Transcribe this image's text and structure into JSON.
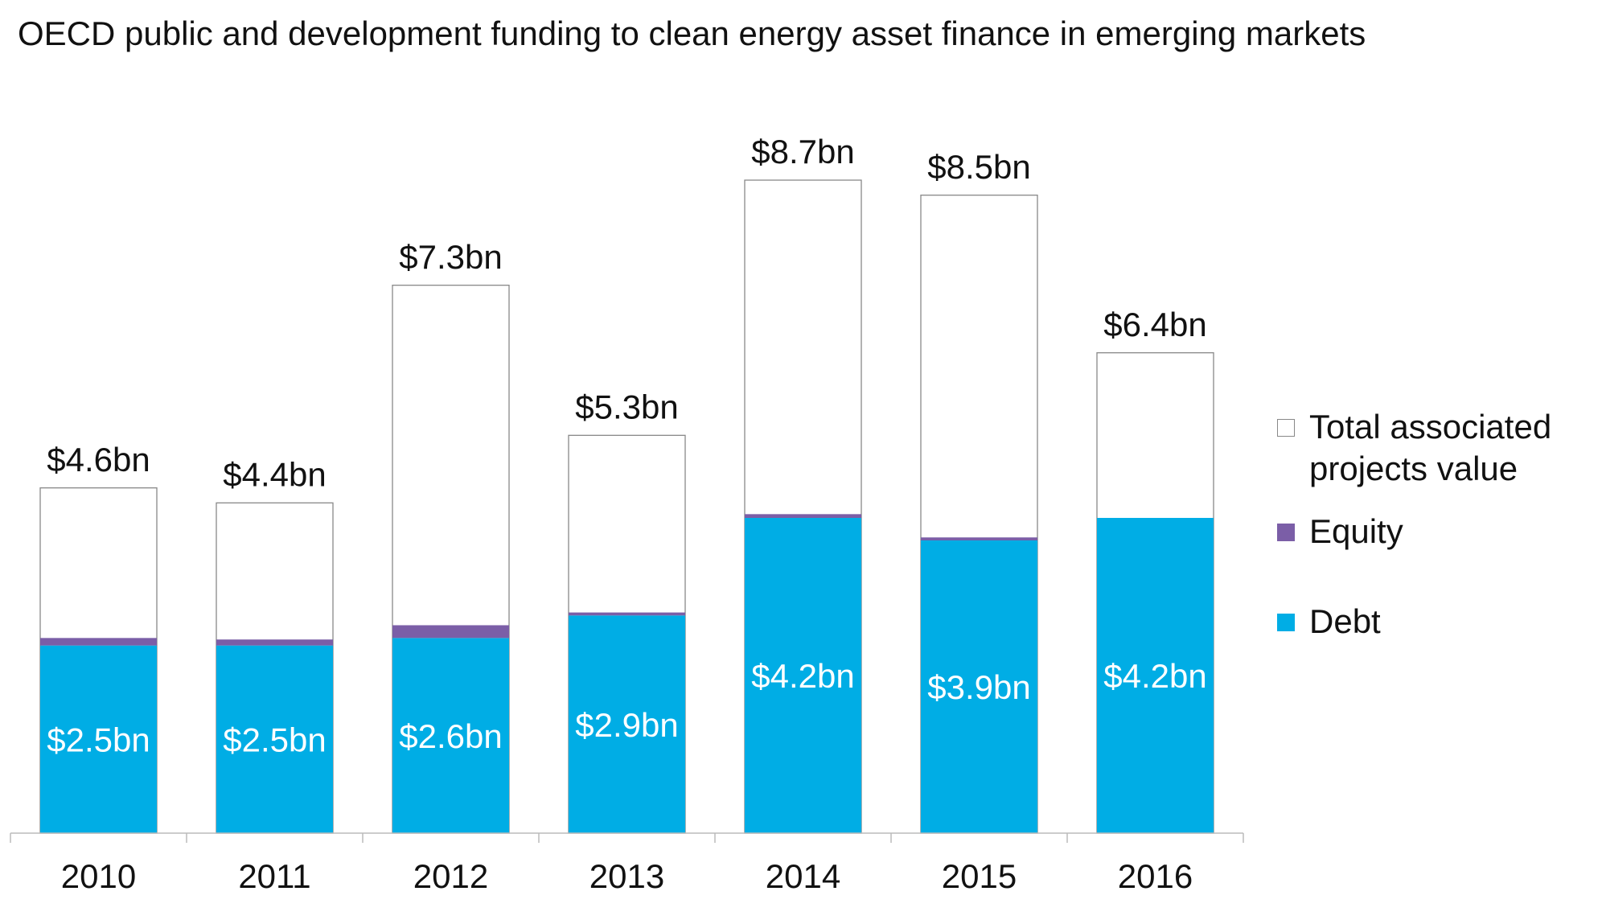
{
  "chart_data": {
    "type": "bar",
    "title": "OECD public and development funding to clean energy asset finance in emerging markets",
    "categories": [
      "2010",
      "2011",
      "2012",
      "2013",
      "2014",
      "2015",
      "2016"
    ],
    "ylim": [
      0,
      9
    ],
    "series": [
      {
        "name": "Debt",
        "color": "#00ade5",
        "values": [
          2.5,
          2.5,
          2.6,
          2.9,
          4.2,
          3.9,
          4.2
        ],
        "value_labels": [
          "$2.5bn",
          "$2.5bn",
          "$2.6bn",
          "$2.9bn",
          "$4.2bn",
          "$3.9bn",
          "$4.2bn"
        ]
      },
      {
        "name": "Equity",
        "color": "#7b5ea7",
        "values": [
          0.1,
          0.08,
          0.17,
          0.04,
          0.05,
          0.04,
          0
        ]
      },
      {
        "name": "Total associated projects value",
        "color": "#ffffff",
        "values": [
          4.6,
          4.4,
          7.3,
          5.3,
          8.7,
          8.5,
          6.4
        ],
        "value_labels": [
          "$4.6bn",
          "$4.4bn",
          "$7.3bn",
          "$5.3bn",
          "$8.7bn",
          "$8.5bn",
          "$6.4bn"
        ]
      }
    ]
  }
}
